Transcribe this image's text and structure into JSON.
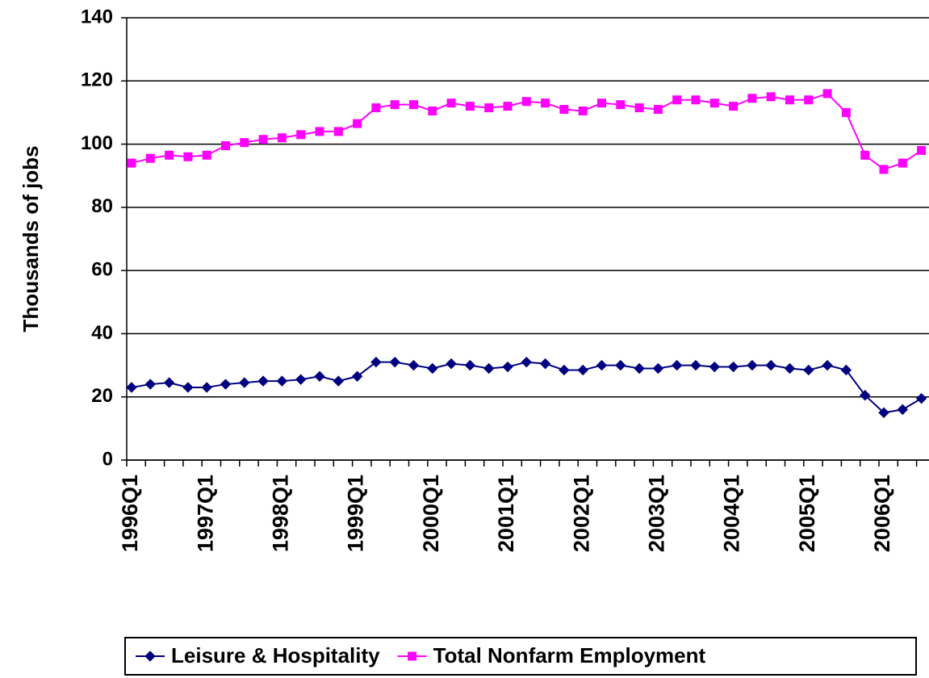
{
  "chart_data": {
    "type": "line",
    "y_label": "Thousands of jobs",
    "categories": [
      "1996Q1",
      null,
      null,
      null,
      "1997Q1",
      null,
      null,
      null,
      "1998Q1",
      null,
      null,
      null,
      "1999Q1",
      null,
      null,
      null,
      "2000Q1",
      null,
      null,
      null,
      "2001Q1",
      null,
      null,
      null,
      "2002Q1",
      null,
      null,
      null,
      "2003Q1",
      null,
      null,
      null,
      "2004Q1",
      null,
      null,
      null,
      "2005Q1",
      null,
      null,
      null,
      "2006Q1",
      null,
      null
    ],
    "series": [
      {
        "name": "Leisure & Hospitality",
        "color": "#000080",
        "marker": "diamond",
        "values": [
          23,
          24,
          24.5,
          23,
          23,
          24,
          24.5,
          25,
          25,
          25.5,
          26.5,
          25,
          26.5,
          31,
          31,
          30,
          29,
          30.5,
          30,
          29,
          29.5,
          31,
          30.5,
          28.5,
          28.5,
          30,
          30,
          29,
          29,
          30,
          30,
          29.5,
          29.5,
          30,
          30,
          29,
          28.5,
          30,
          28.5,
          20.5,
          15,
          16,
          19.5
        ]
      },
      {
        "name": "Total Nonfarm Employment",
        "color": "#ff00ff",
        "marker": "square",
        "values": [
          94,
          95.5,
          96.5,
          96,
          96.5,
          99.5,
          100.5,
          101.5,
          102,
          103,
          104,
          104,
          106.5,
          111.5,
          112.5,
          112.5,
          110.5,
          113,
          112,
          111.5,
          112,
          113.5,
          113,
          111,
          110.5,
          113,
          112.5,
          111.5,
          111,
          114,
          114,
          113,
          112,
          114.5,
          115,
          114,
          114,
          116,
          110,
          96.5,
          92,
          94,
          98
        ]
      }
    ],
    "ylim": [
      0,
      140
    ],
    "yticks": [
      0,
      20,
      40,
      60,
      80,
      100,
      120,
      140
    ],
    "grid": true,
    "legend": "bottom"
  }
}
